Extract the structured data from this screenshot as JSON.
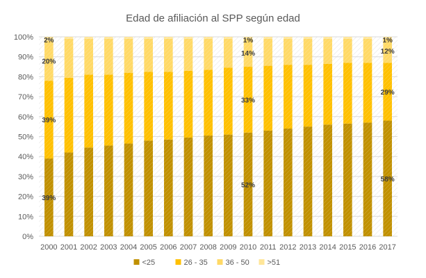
{
  "chart_data": {
    "type": "bar",
    "stacked": "percent",
    "title": "Edad de afiliación al SPP según edad",
    "categories": [
      "2000",
      "2001",
      "2002",
      "2003",
      "2004",
      "2005",
      "2006",
      "2007",
      "2008",
      "2009",
      "2010",
      "2011",
      "2012",
      "2013",
      "2014",
      "2015",
      "2016",
      "2017"
    ],
    "series": [
      {
        "name": "<25",
        "color": "#C09000",
        "values": [
          39,
          42,
          44.5,
          45.5,
          46.5,
          48,
          48.5,
          49.5,
          50.5,
          51,
          52,
          53,
          54,
          55,
          56,
          56.5,
          57,
          58
        ]
      },
      {
        "name": "26 - 35",
        "color": "#FFC000",
        "values": [
          39,
          37.5,
          36.5,
          35.5,
          35.5,
          34.5,
          34,
          33.5,
          33,
          33.5,
          33,
          32.5,
          32,
          31,
          30.5,
          30.5,
          30,
          29
        ]
      },
      {
        "name": "36 - 50",
        "color": "#FFD966",
        "values": [
          20,
          19.5,
          18,
          18,
          17,
          16.5,
          16.5,
          16,
          15.5,
          14.5,
          14,
          13.5,
          13,
          13,
          12.5,
          12,
          12,
          12
        ]
      },
      {
        "name": ">51",
        "color": "#FFE699",
        "values": [
          2,
          1,
          1,
          1,
          1,
          1,
          1,
          1,
          1,
          1,
          1,
          1,
          1,
          1,
          1,
          1,
          1,
          1
        ]
      }
    ],
    "data_labels": [
      {
        "category": "2000",
        "series": "<25",
        "text": "39%"
      },
      {
        "category": "2000",
        "series": "26 - 35",
        "text": "39%"
      },
      {
        "category": "2000",
        "series": "36 - 50",
        "text": "20%"
      },
      {
        "category": "2000",
        "series": ">51",
        "text": "2%"
      },
      {
        "category": "2010",
        "series": "<25",
        "text": "52%"
      },
      {
        "category": "2010",
        "series": "26 - 35",
        "text": "33%"
      },
      {
        "category": "2010",
        "series": "36 - 50",
        "text": "14%"
      },
      {
        "category": "2010",
        "series": ">51",
        "text": "1%"
      },
      {
        "category": "2017",
        "series": "<25",
        "text": "58%"
      },
      {
        "category": "2017",
        "series": "26 - 35",
        "text": "29%"
      },
      {
        "category": "2017",
        "series": "36 - 50",
        "text": "12%"
      },
      {
        "category": "2017",
        "series": ">51",
        "text": "1%"
      }
    ],
    "y_ticks": [
      "0%",
      "10%",
      "20%",
      "30%",
      "40%",
      "50%",
      "60%",
      "70%",
      "80%",
      "90%",
      "100%"
    ],
    "ylim": [
      0,
      100
    ],
    "xlabel": "",
    "ylabel": "",
    "grid": true,
    "legend_position": "bottom",
    "bar_pattern": "diagonal-hatch"
  }
}
